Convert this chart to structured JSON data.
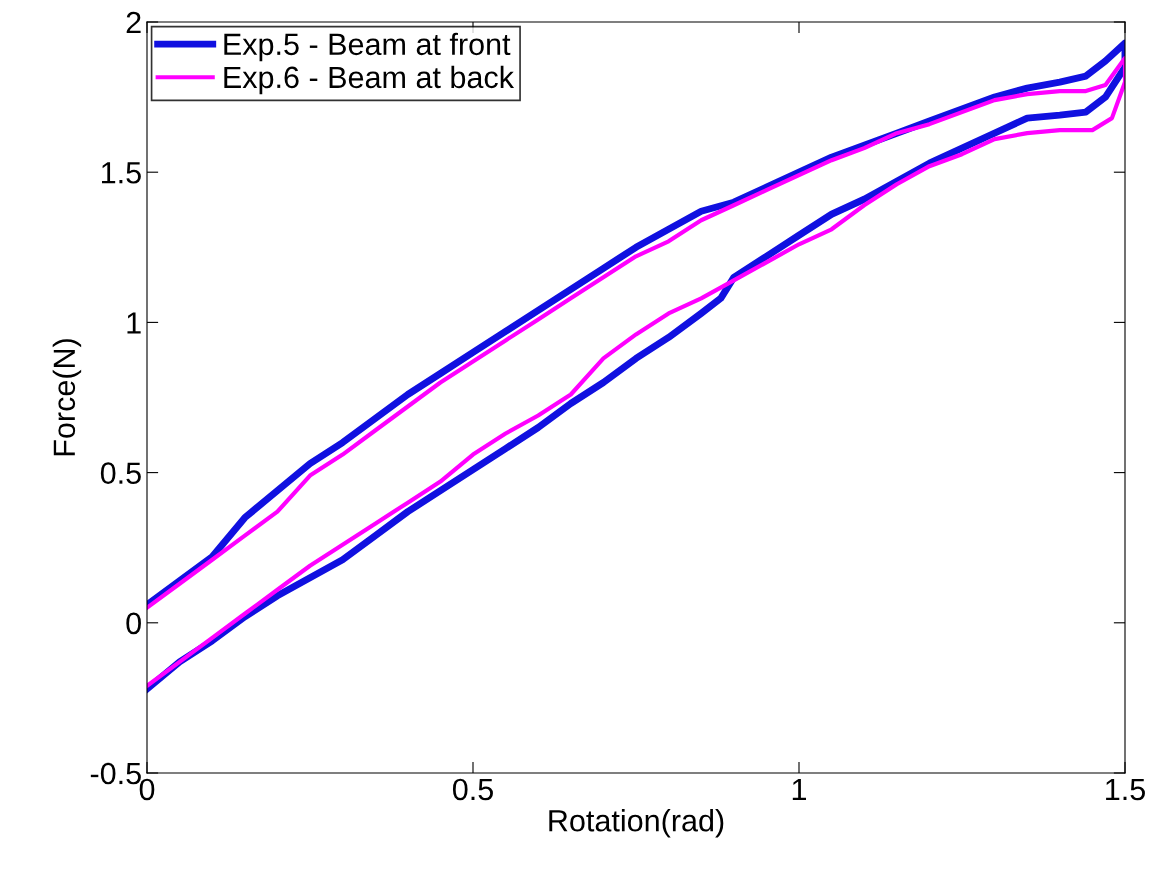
{
  "chart_data": {
    "type": "line",
    "xlabel": "Rotation(rad)",
    "ylabel": "Force(N)",
    "xlim": [
      0,
      1.5
    ],
    "ylim": [
      -0.5,
      2
    ],
    "xticks": [
      0,
      0.5,
      1,
      1.5
    ],
    "yticks": [
      -0.5,
      0,
      0.5,
      1,
      1.5,
      2
    ],
    "grid": false,
    "legend": "top left",
    "marker": "none",
    "line_style": "solid",
    "series": [
      {
        "name": "Exp.5 - Beam at front",
        "color": "#1010e0",
        "x": [
          0,
          0.05,
          0.1,
          0.15,
          0.2,
          0.25,
          0.3,
          0.35,
          0.4,
          0.45,
          0.5,
          0.55,
          0.6,
          0.65,
          0.7,
          0.75,
          0.8,
          0.85,
          0.88,
          0.9,
          0.95,
          1.0,
          1.05,
          1.1,
          1.15,
          1.2,
          1.25,
          1.3,
          1.35,
          1.4,
          1.44,
          1.47,
          1.5,
          1.5,
          1.47,
          1.44,
          1.4,
          1.35,
          1.3,
          1.25,
          1.2,
          1.15,
          1.1,
          1.05,
          1.0,
          0.95,
          0.9,
          0.85,
          0.8,
          0.75,
          0.7,
          0.65,
          0.6,
          0.55,
          0.5,
          0.45,
          0.4,
          0.35,
          0.3,
          0.25,
          0.2,
          0.15,
          0.1,
          0.05,
          0
        ],
        "values": [
          -0.22,
          -0.13,
          -0.06,
          0.02,
          0.09,
          0.15,
          0.21,
          0.29,
          0.37,
          0.44,
          0.51,
          0.58,
          0.65,
          0.73,
          0.8,
          0.88,
          0.95,
          1.03,
          1.08,
          1.15,
          1.22,
          1.29,
          1.36,
          1.41,
          1.47,
          1.53,
          1.58,
          1.63,
          1.68,
          1.69,
          1.7,
          1.75,
          1.85,
          1.93,
          1.87,
          1.82,
          1.8,
          1.78,
          1.75,
          1.71,
          1.67,
          1.63,
          1.59,
          1.55,
          1.5,
          1.45,
          1.4,
          1.37,
          1.31,
          1.25,
          1.18,
          1.11,
          1.04,
          0.97,
          0.9,
          0.83,
          0.76,
          0.68,
          0.6,
          0.53,
          0.44,
          0.35,
          0.22,
          0.14,
          0.06
        ]
      },
      {
        "name": "Exp.6 - Beam at back",
        "color": "#ff00ff",
        "x": [
          0,
          0.05,
          0.1,
          0.15,
          0.2,
          0.25,
          0.3,
          0.35,
          0.4,
          0.45,
          0.5,
          0.55,
          0.6,
          0.65,
          0.7,
          0.75,
          0.8,
          0.85,
          0.9,
          0.95,
          1.0,
          1.05,
          1.1,
          1.15,
          1.2,
          1.25,
          1.3,
          1.35,
          1.4,
          1.45,
          1.48,
          1.5,
          1.5,
          1.47,
          1.44,
          1.4,
          1.35,
          1.3,
          1.25,
          1.2,
          1.15,
          1.1,
          1.05,
          1.0,
          0.95,
          0.9,
          0.85,
          0.8,
          0.75,
          0.7,
          0.65,
          0.6,
          0.55,
          0.5,
          0.45,
          0.4,
          0.35,
          0.3,
          0.25,
          0.2,
          0.15,
          0.1,
          0.05,
          0
        ],
        "values": [
          -0.21,
          -0.13,
          -0.05,
          0.03,
          0.11,
          0.19,
          0.26,
          0.33,
          0.4,
          0.47,
          0.56,
          0.63,
          0.69,
          0.76,
          0.88,
          0.96,
          1.03,
          1.08,
          1.14,
          1.2,
          1.26,
          1.31,
          1.39,
          1.46,
          1.52,
          1.56,
          1.61,
          1.63,
          1.64,
          1.64,
          1.68,
          1.8,
          1.88,
          1.79,
          1.77,
          1.77,
          1.76,
          1.74,
          1.7,
          1.66,
          1.63,
          1.58,
          1.54,
          1.49,
          1.44,
          1.39,
          1.34,
          1.27,
          1.22,
          1.15,
          1.08,
          1.01,
          0.94,
          0.87,
          0.8,
          0.72,
          0.64,
          0.56,
          0.49,
          0.37,
          0.29,
          0.21,
          0.13,
          0.05
        ]
      }
    ]
  }
}
